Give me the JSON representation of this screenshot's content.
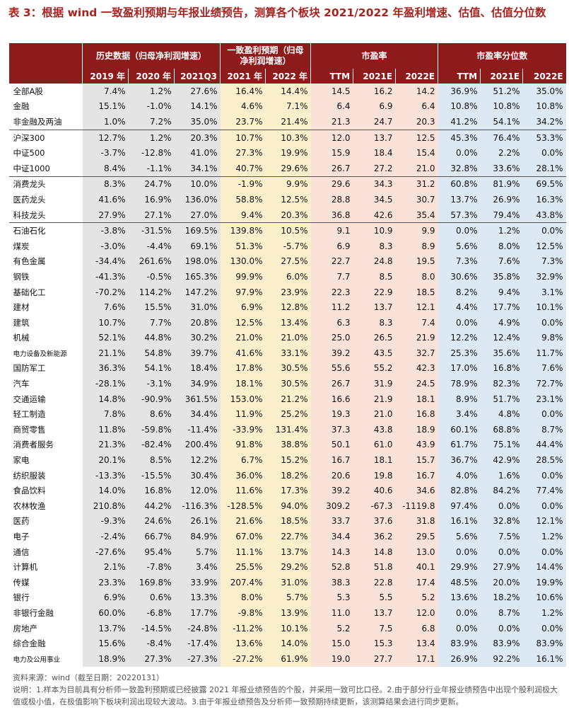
{
  "header": {
    "title": "表 3：根据 wind 一致盈利预期与年报业绩预告，测算各个板块 2021/2022 年盈利增速、估值、估值分位数"
  },
  "table": {
    "groups": [
      "历史数据（归母净利润增速）",
      "一致盈利预期（归母净利润增速）",
      "市盈率",
      "市盈率分位数"
    ],
    "columns": [
      "2019 年",
      "2020 年",
      "2021Q3",
      "2021 年",
      "2022 年",
      "TTM",
      "2021E",
      "2022E",
      "TTM",
      "2021E",
      "2022E"
    ],
    "rows": [
      [
        "全部A股",
        "7.4%",
        "1.2%",
        "27.6%",
        "16.4%",
        "14.4%",
        "14.5",
        "16.2",
        "14.2",
        "36.9%",
        "51.2%",
        "35.0%"
      ],
      [
        "金融",
        "15.1%",
        "-1.0%",
        "14.1%",
        "4.6%",
        "7.1%",
        "6.4",
        "6.9",
        "6.4",
        "10.8%",
        "10.8%",
        "10.8%"
      ],
      [
        "非金融及两油",
        "1.0%",
        "7.2%",
        "35.0%",
        "23.7%",
        "21.4%",
        "21.3",
        "24.7",
        "20.3",
        "41.2%",
        "54.1%",
        "34.2%"
      ],
      [
        "沪深300",
        "12.7%",
        "1.2%",
        "20.3%",
        "10.7%",
        "10.3%",
        "12.0",
        "13.7",
        "12.5",
        "45.3%",
        "76.4%",
        "53.3%"
      ],
      [
        "中证500",
        "-3.7%",
        "-12.8%",
        "41.0%",
        "27.3%",
        "19.9%",
        "15.9",
        "18.4",
        "15.4",
        "0.0%",
        "2.2%",
        "0.0%"
      ],
      [
        "中证1000",
        "8.4%",
        "-1.1%",
        "34.1%",
        "40.7%",
        "29.6%",
        "26.7",
        "27.2",
        "21.0",
        "32.8%",
        "33.6%",
        "28.1%"
      ],
      [
        "消费龙头",
        "8.3%",
        "24.7%",
        "10.0%",
        "-1.9%",
        "9.9%",
        "29.6",
        "34.3",
        "31.2",
        "60.8%",
        "81.9%",
        "69.5%"
      ],
      [
        "医药龙头",
        "41.6%",
        "16.9%",
        "136.0%",
        "58.8%",
        "12.5%",
        "28.8",
        "34.5",
        "30.7",
        "13.7%",
        "26.9%",
        "16.3%"
      ],
      [
        "科技龙头",
        "27.9%",
        "27.1%",
        "27.0%",
        "9.4%",
        "20.3%",
        "36.8",
        "42.6",
        "35.4",
        "57.3%",
        "79.4%",
        "43.8%"
      ],
      [
        "石油石化",
        "-3.8%",
        "-31.5%",
        "169.5%",
        "139.8%",
        "10.5%",
        "9.1",
        "10.9",
        "9.9",
        "0.0%",
        "1.2%",
        "0.0%"
      ],
      [
        "煤炭",
        "-3.0%",
        "-4.4%",
        "69.1%",
        "51.3%",
        "-5.7%",
        "6.9",
        "8.3",
        "8.9",
        "5.6%",
        "8.0%",
        "12.5%"
      ],
      [
        "有色金属",
        "-34.4%",
        "261.6%",
        "198.0%",
        "130.0%",
        "27.5%",
        "22.7",
        "24.8",
        "19.5",
        "7.3%",
        "7.6%",
        "7.3%"
      ],
      [
        "钢铁",
        "-41.3%",
        "-0.5%",
        "165.3%",
        "99.9%",
        "6.0%",
        "7.7",
        "8.5",
        "8.0",
        "30.6%",
        "35.8%",
        "32.9%"
      ],
      [
        "基础化工",
        "-70.2%",
        "114.2%",
        "147.2%",
        "97.9%",
        "23.9%",
        "22.3",
        "22.9",
        "18.5",
        "8.2%",
        "9.4%",
        "3.1%"
      ],
      [
        "建材",
        "7.6%",
        "15.5%",
        "31.0%",
        "6.9%",
        "12.8%",
        "11.2",
        "13.7",
        "12.1",
        "4.4%",
        "17.7%",
        "10.1%"
      ],
      [
        "建筑",
        "10.7%",
        "7.7%",
        "20.8%",
        "12.5%",
        "13.4%",
        "6.3",
        "8.3",
        "7.4",
        "0.0%",
        "4.9%",
        "0.0%"
      ],
      [
        "机械",
        "52.1%",
        "44.8%",
        "30.2%",
        "21.0%",
        "21.0%",
        "25.0",
        "26.5",
        "21.9",
        "12.2%",
        "12.4%",
        "9.8%"
      ],
      [
        "电力设备及新能源",
        "21.1%",
        "54.8%",
        "39.7%",
        "41.6%",
        "33.1%",
        "39.2",
        "43.5",
        "32.7",
        "25.3%",
        "35.6%",
        "11.7%"
      ],
      [
        "国防军工",
        "36.3%",
        "54.1%",
        "18.4%",
        "17.8%",
        "30.5%",
        "55.6",
        "55.2",
        "42.3",
        "17.0%",
        "16.8%",
        "7.6%"
      ],
      [
        "汽车",
        "-28.1%",
        "-3.1%",
        "34.9%",
        "18.1%",
        "30.5%",
        "26.7",
        "31.9",
        "24.5",
        "78.9%",
        "82.3%",
        "72.7%"
      ],
      [
        "交通运输",
        "14.8%",
        "-90.9%",
        "361.5%",
        "153.0%",
        "21.2%",
        "16.6",
        "21.9",
        "18.1",
        "8.9%",
        "51.7%",
        "23.1%"
      ],
      [
        "轻工制造",
        "7.8%",
        "8.6%",
        "34.4%",
        "11.9%",
        "25.2%",
        "19.3",
        "21.0",
        "16.8",
        "3.4%",
        "4.8%",
        "0.0%"
      ],
      [
        "商贸零售",
        "11.8%",
        "-59.8%",
        "-11.4%",
        "-33.9%",
        "131.4%",
        "37.3",
        "43.8",
        "18.9",
        "60.1%",
        "68.8%",
        "8.7%"
      ],
      [
        "消费者服务",
        "21.3%",
        "-82.4%",
        "200.4%",
        "91.8%",
        "38.8%",
        "50.1",
        "61.0",
        "43.9",
        "61.7%",
        "75.1%",
        "44.4%"
      ],
      [
        "家电",
        "20.1%",
        "8.5%",
        "12.2%",
        "6.7%",
        "15.2%",
        "16.7",
        "18.1",
        "15.7",
        "36.7%",
        "42.9%",
        "28.5%"
      ],
      [
        "纺织服装",
        "-13.3%",
        "-15.5%",
        "30.4%",
        "36.0%",
        "18.2%",
        "20.6",
        "19.8",
        "16.7",
        "4.0%",
        "1.6%",
        "0.0%"
      ],
      [
        "食品饮料",
        "14.0%",
        "16.8%",
        "12.0%",
        "11.6%",
        "17.3%",
        "39.2",
        "40.6",
        "34.6",
        "82.8%",
        "84.2%",
        "77.4%"
      ],
      [
        "农林牧渔",
        "210.8%",
        "44.2%",
        "-116.3%",
        "-128.5%",
        "94.0%",
        "309.2",
        "-67.3",
        "-1119.8",
        "97.4%",
        "0.0%",
        "0.0%"
      ],
      [
        "医药",
        "-9.3%",
        "24.6%",
        "26.1%",
        "21.6%",
        "18.5%",
        "33.7",
        "37.6",
        "31.8",
        "16.1%",
        "32.8%",
        "12.1%"
      ],
      [
        "电子",
        "-2.4%",
        "66.7%",
        "84.9%",
        "67.0%",
        "22.7%",
        "34.4",
        "36.2",
        "29.5",
        "5.6%",
        "7.5%",
        "1.2%"
      ],
      [
        "通信",
        "-27.6%",
        "95.4%",
        "5.7%",
        "11.1%",
        "13.7%",
        "14.3",
        "14.8",
        "13.0",
        "0.0%",
        "0.0%",
        "0.0%"
      ],
      [
        "计算机",
        "2.1%",
        "-7.8%",
        "3.4%",
        "25.5%",
        "29.2%",
        "52.8",
        "51.8",
        "40.1",
        "29.9%",
        "27.9%",
        "14.4%"
      ],
      [
        "传媒",
        "23.3%",
        "169.8%",
        "33.9%",
        "207.4%",
        "31.0%",
        "38.3",
        "22.8",
        "17.4",
        "48.5%",
        "20.0%",
        "19.9%"
      ],
      [
        "银行",
        "6.9%",
        "0.6%",
        "13.3%",
        "8.0%",
        "5.7%",
        "5.3",
        "5.5",
        "5.2",
        "13.6%",
        "18.2%",
        "10.6%"
      ],
      [
        "非银行金融",
        "60.0%",
        "-6.8%",
        "17.7%",
        "-9.8%",
        "13.9%",
        "11.0",
        "13.7",
        "12.0",
        "0.0%",
        "8.7%",
        "1.2%"
      ],
      [
        "房地产",
        "13.7%",
        "-14.5%",
        "-24.8%",
        "-11.2%",
        "10.1%",
        "5.2",
        "7.5",
        "6.8",
        "0.0%",
        "0.0%",
        "0.0%"
      ],
      [
        "综合金融",
        "15.6%",
        "-8.4%",
        "-17.4%",
        "13.6%",
        "14.0%",
        "15.0",
        "15.3",
        "13.4",
        "83.9%",
        "83.9%",
        "83.9%"
      ],
      [
        "电力及公用事业",
        "18.9%",
        "27.3%",
        "-27.3%",
        "-27.2%",
        "61.9%",
        "19.0",
        "27.7",
        "17.1",
        "26.9%",
        "92.2%",
        "16.1%"
      ]
    ]
  },
  "footer": {
    "source": "资料来源：wind（截至日期：20220131）",
    "note": "说明：1.样本为目前具有分析师一致盈利预期或已经披露 2021 年报业绩预告的个股，并采用一致可比口径。2.由于部分行业年报业绩预告中出现个股利润极大值或极小值，在极值影响下板块利润出现较大波动。3.由于年报业绩预告及分析师一致预期持续更新，该测算结果会进行同步更新。"
  }
}
